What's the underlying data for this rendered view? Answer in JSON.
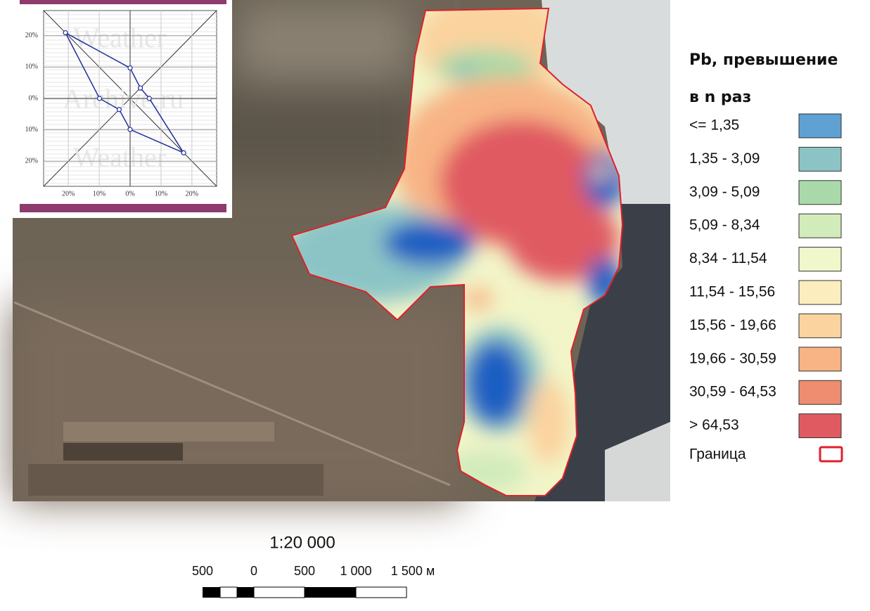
{
  "chart_data": {
    "type": "windrose",
    "categories": [
      null,
      null,
      null,
      null,
      null,
      null,
      null,
      null
    ],
    "values": [
      9.7,
      4.7,
      6.2,
      24.5,
      9.9,
      5,
      9.9,
      29.6
    ],
    "color": "#1f2f9a",
    "xlim": [
      -28,
      28
    ],
    "ylim": [
      -28,
      28
    ],
    "xticks": [
      {
        "value": -20,
        "label": "20%"
      },
      {
        "value": -10,
        "label": "10%"
      },
      {
        "value": 0,
        "label": "0%"
      },
      {
        "value": 10,
        "label": "10%"
      },
      {
        "value": 20,
        "label": "20%"
      }
    ],
    "yticks": [
      {
        "value": 20,
        "label": "20%"
      },
      {
        "value": 10,
        "label": "10%"
      },
      {
        "value": 0,
        "label": "0%"
      },
      {
        "value": -10,
        "label": "10%"
      },
      {
        "value": -20,
        "label": "20%"
      }
    ],
    "annotations": [
      "Weather",
      "Archive.ru",
      "Weather"
    ]
  },
  "legend": {
    "title": [
      "Pb, превышение",
      "в n раз"
    ],
    "items": [
      {
        "label": "<= 1,35",
        "color": "#5fa1d3"
      },
      {
        "label": "1,35 - 3,09",
        "color": "#8cc4c6"
      },
      {
        "label": "3,09 - 5,09",
        "color": "#a9d9a8"
      },
      {
        "label": "5,09 - 8,34",
        "color": "#d2ebbb"
      },
      {
        "label": "8,34 - 11,54",
        "color": "#f0f7cb"
      },
      {
        "label": "11,54 - 15,56",
        "color": "#fcedbf"
      },
      {
        "label": "15,56 - 19,66",
        "color": "#fbd39f"
      },
      {
        "label": "19,66 - 30,59",
        "color": "#f8b485"
      },
      {
        "label": "30,59 - 64,53",
        "color": "#ef8d70"
      },
      {
        "label": "> 64,53",
        "color": "#e05a62"
      }
    ],
    "boundary": {
      "label": "Граница",
      "color": "#e0202b"
    }
  },
  "scale": {
    "ratio": "1:20 000",
    "labels": [
      "500",
      "0",
      "500",
      "1 000",
      "1 500 м"
    ]
  }
}
